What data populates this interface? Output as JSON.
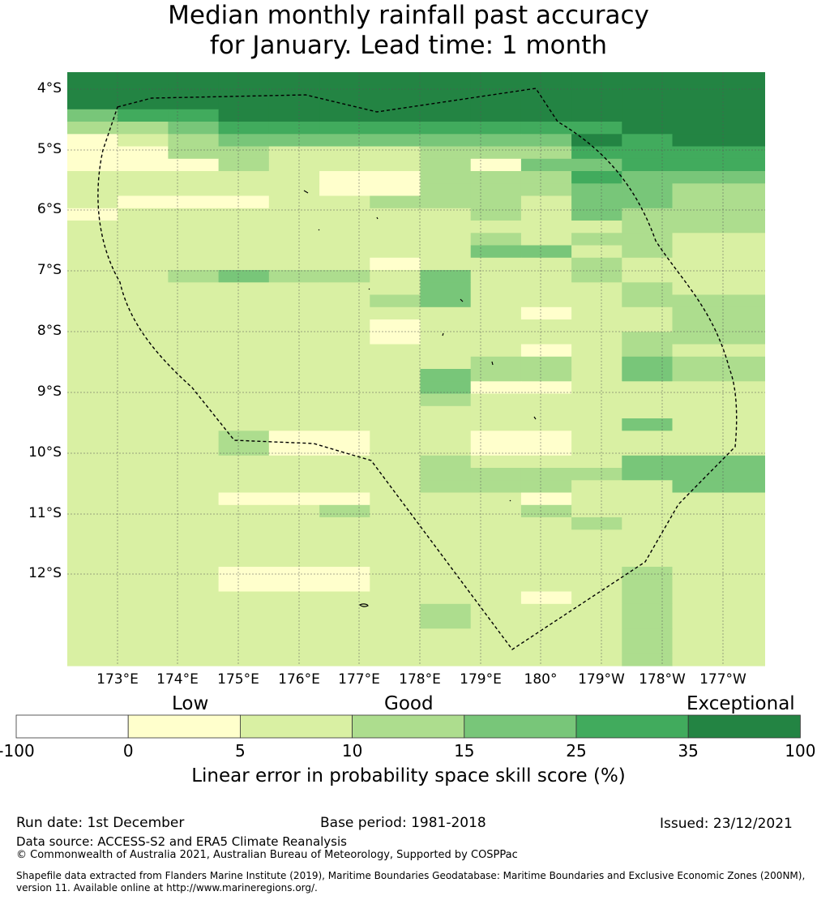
{
  "title": {
    "line1": "Median monthly rainfall past accuracy",
    "line2": "for January. Lead time: 1 month"
  },
  "map": {
    "lat_labels": [
      "4°S",
      "5°S",
      "6°S",
      "7°S",
      "8°S",
      "9°S",
      "10°S",
      "11°S",
      "12°S"
    ],
    "lon_labels": [
      "173°E",
      "174°E",
      "175°E",
      "176°E",
      "177°E",
      "178°E",
      "179°E",
      "180°",
      "179°W",
      "178°W",
      "177°W"
    ],
    "palette": [
      "#ffffff",
      "#ffffcc",
      "#d9f0a3",
      "#addd8e",
      "#78c679",
      "#41ab5d",
      "#238443"
    ],
    "grid_rows": [
      "6666666666666",
      "6666666666666",
      "6666666666666",
      "4556666666666",
      "3345555555566",
      "1234444444656",
      "1133222333555",
      "1113222314455",
      "2222211333544",
      "2222211333443",
      "2111223332443",
      "1222222232433",
      "2222222222233",
      "2222222232332",
      "2222222244232",
      "2222221222322",
      "2234332422322",
      "2222222422232",
      "2222223422233",
      "2222222221223",
      "2222221222223",
      "2222221222233",
      "2222222221232",
      "2222222233243",
      "2222222433243",
      "2222222411222",
      "2222222322222",
      "2222222222222",
      "2222222222242",
      "2223112211222",
      "2223112211222",
      "2222222322244",
      "2222222333344",
      "2222222333224",
      "2221112221222",
      "2222232223222",
      "2222222222322",
      "2222222222222",
      "2222222222222",
      "2222222222222",
      "2221112222232",
      "2221112222232",
      "2222222221232",
      "2222222322232",
      "2222222322232",
      "2222222222232",
      "2222222222232",
      "2222222222232"
    ]
  },
  "colorbar": {
    "categories": [
      "Low",
      "Good",
      "Exceptional"
    ],
    "ticks": [
      "-100",
      "0",
      "5",
      "10",
      "15",
      "25",
      "35",
      "100"
    ],
    "label": "Linear error in probability space skill score (%)"
  },
  "footer": {
    "run_date": "Run date: 1st December",
    "base_period": "Base period: 1981-2018",
    "issued": "Issued: 23/12/2021",
    "data_source": "Data source: ACCESS-S2 and ERA5 Climate Reanalysis",
    "copyright": "© Commonwealth of Australia 2021, Australian Bureau of Meteorology, Supported by COSPPac",
    "shapefile_line1": "Shapefile data extracted from Flanders Marine Institute (2019), Maritime Boundaries Geodatabase: Maritime Boundaries and Exclusive Economic Zones (200NM),",
    "shapefile_line2": "version 11. Available online at http://www.marineregions.org/."
  }
}
